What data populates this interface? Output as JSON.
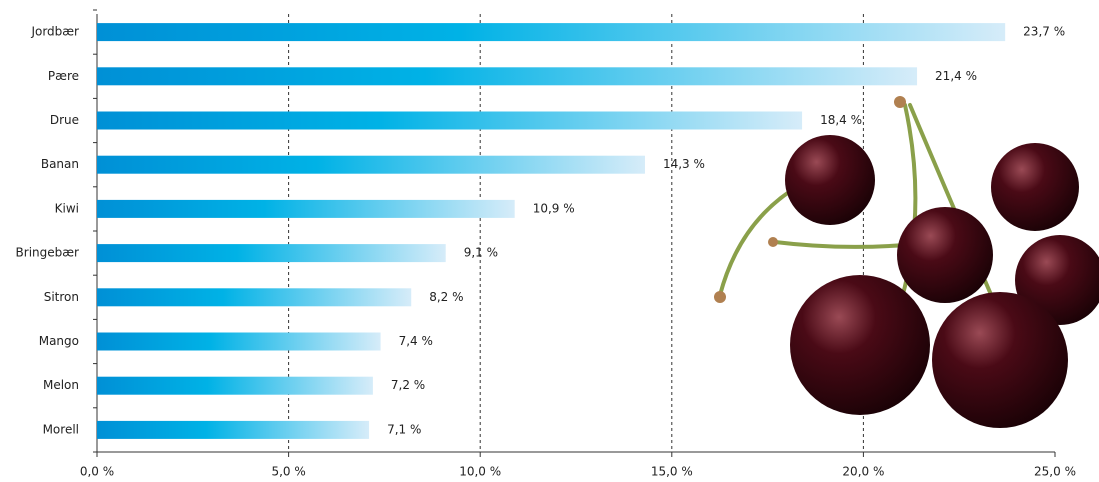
{
  "chart_data": {
    "type": "barh",
    "categories": [
      "Jordbær",
      "Pære",
      "Drue",
      "Banan",
      "Kiwi",
      "Bringebær",
      "Sitron",
      "Mango",
      "Melon",
      "Morell"
    ],
    "values": [
      23.7,
      21.4,
      18.4,
      14.3,
      10.9,
      9.1,
      8.2,
      7.4,
      7.2,
      7.1
    ],
    "value_labels": [
      "23,7 %",
      "21,4 %",
      "18,4 %",
      "14,3 %",
      "10,9 %",
      "9,1 %",
      "8,2 %",
      "7,4 %",
      "7,2 %",
      "7,1 %"
    ],
    "xlim": [
      0,
      25
    ],
    "xticks": [
      {
        "value": 0,
        "label": "0,0 %"
      },
      {
        "value": 5,
        "label": "5,0 %"
      },
      {
        "value": 10,
        "label": "10,0 %"
      },
      {
        "value": 15,
        "label": "15,0 %"
      },
      {
        "value": 20,
        "label": "20,0 %"
      },
      {
        "value": 25,
        "label": "25,0 %"
      }
    ],
    "grid": true
  }
}
